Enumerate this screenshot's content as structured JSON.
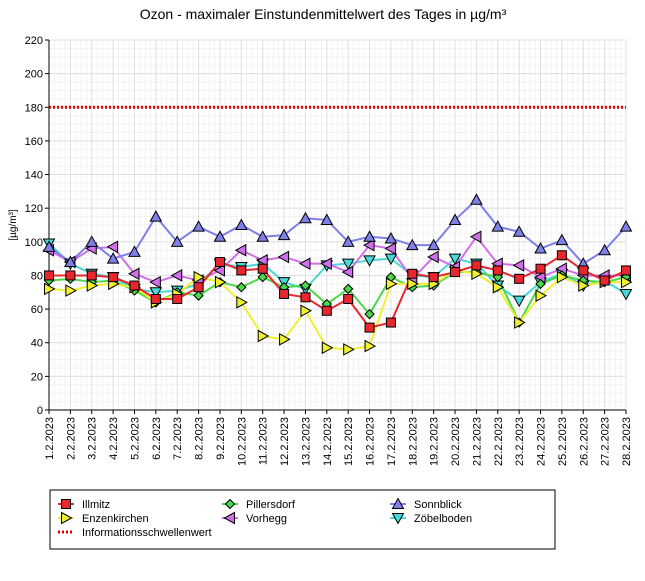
{
  "chart_data": {
    "type": "line",
    "title": "Ozon -  maximaler Einstundenmittelwert des Tages in µg/m³",
    "ylabel": "[µg/m³]",
    "xlabel": "",
    "ylim": [
      0,
      220
    ],
    "yticks": [
      0,
      20,
      40,
      60,
      80,
      100,
      120,
      140,
      160,
      180,
      200,
      220
    ],
    "grid": true,
    "legend_position": "bottom",
    "categories": [
      "1.2.2023",
      "2.2.2023",
      "3.2.2023",
      "4.2.2023",
      "5.2.2023",
      "6.2.2023",
      "7.2.2023",
      "8.2.2023",
      "9.2.2023",
      "10.2.2023",
      "11.2.2023",
      "12.2.2023",
      "13.2.2023",
      "14.2.2023",
      "15.2.2023",
      "16.2.2023",
      "17.2.2023",
      "18.2.2023",
      "19.2.2023",
      "20.2.2023",
      "21.2.2023",
      "22.2.2023",
      "23.2.2023",
      "24.2.2023",
      "25.2.2023",
      "26.2.2023",
      "27.2.2023",
      "28.2.2023"
    ],
    "series": [
      {
        "name": "Illmitz",
        "color": "#e8262d",
        "marker": "square",
        "values": [
          80,
          80,
          80,
          79,
          74,
          66,
          66,
          73,
          88,
          83,
          84,
          69,
          67,
          59,
          66,
          49,
          52,
          81,
          79,
          82,
          86,
          83,
          78,
          84,
          92,
          83,
          77,
          83
        ]
      },
      {
        "name": "Enzenkirchen",
        "color": "#f0f030",
        "marker": "triangle-right",
        "values": [
          72,
          71,
          74,
          75,
          73,
          64,
          69,
          79,
          76,
          64,
          44,
          42,
          59,
          37,
          36,
          38,
          75,
          75,
          75,
          83,
          81,
          73,
          52,
          68,
          79,
          74,
          76,
          76
        ]
      },
      {
        "name": "Pillersdorf",
        "color": "#4cd84c",
        "marker": "diamond",
        "values": [
          77,
          78,
          76,
          77,
          71,
          64,
          70,
          68,
          76,
          73,
          79,
          73,
          74,
          63,
          72,
          57,
          79,
          73,
          74,
          82,
          82,
          79,
          52,
          75,
          80,
          77,
          76,
          79
        ]
      },
      {
        "name": "Vorhegg",
        "color": "#d070e8",
        "marker": "triangle-left",
        "values": [
          95,
          88,
          96,
          97,
          81,
          76,
          80,
          77,
          83,
          95,
          89,
          91,
          87,
          87,
          82,
          98,
          96,
          78,
          91,
          85,
          103,
          87,
          86,
          79,
          84,
          80,
          80,
          80
        ]
      },
      {
        "name": "Sonnblick",
        "color": "#7f7fe8",
        "marker": "triangle-up",
        "values": [
          97,
          88,
          100,
          90,
          94,
          115,
          100,
          109,
          103,
          110,
          103,
          104,
          114,
          113,
          100,
          103,
          102,
          98,
          98,
          113,
          125,
          109,
          106,
          96,
          101,
          87,
          95,
          109
        ]
      },
      {
        "name": "Zöbelboden",
        "color": "#48d8d8",
        "marker": "triangle-down",
        "values": [
          99,
          87,
          81,
          79,
          72,
          70,
          71,
          75,
          87,
          85,
          87,
          76,
          72,
          86,
          87,
          89,
          90,
          80,
          79,
          90,
          87,
          74,
          65,
          76,
          81,
          74,
          77,
          69
        ]
      }
    ],
    "reference_lines": [
      {
        "name": "Informationsschwellenwert",
        "value": 180,
        "color": "#e00000",
        "style": "dotted"
      }
    ]
  }
}
